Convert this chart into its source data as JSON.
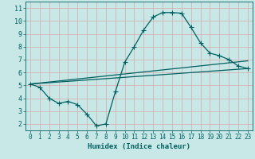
{
  "xlabel": "Humidex (Indice chaleur)",
  "ylabel": "",
  "bg_color": "#c8e8e8",
  "grid_color": "#d8a8a8",
  "line_color": "#006060",
  "xlim": [
    -0.5,
    23.5
  ],
  "ylim": [
    1.5,
    11.5
  ],
  "xticks": [
    0,
    1,
    2,
    3,
    4,
    5,
    6,
    7,
    8,
    9,
    10,
    11,
    12,
    13,
    14,
    15,
    16,
    17,
    18,
    19,
    20,
    21,
    22,
    23
  ],
  "yticks": [
    2,
    3,
    4,
    5,
    6,
    7,
    8,
    9,
    10,
    11
  ],
  "curve1_x": [
    0,
    1,
    2,
    3,
    4,
    5,
    6,
    7,
    8,
    9,
    10,
    11,
    12,
    13,
    14,
    15,
    16,
    17,
    18,
    19,
    20,
    21,
    22,
    23
  ],
  "curve1_y": [
    5.1,
    4.85,
    4.0,
    3.6,
    3.75,
    3.5,
    2.75,
    1.85,
    2.0,
    4.5,
    6.8,
    8.0,
    9.3,
    10.3,
    10.65,
    10.65,
    10.6,
    9.5,
    8.3,
    7.5,
    7.3,
    7.0,
    6.5,
    6.3
  ],
  "line2_x": [
    0,
    23
  ],
  "line2_y": [
    5.1,
    6.3
  ],
  "line3_x": [
    0,
    23
  ],
  "line3_y": [
    5.1,
    6.9
  ],
  "marker_size": 2.2,
  "linewidth": 0.9,
  "tick_fontsize": 5.5,
  "xlabel_fontsize": 6.5
}
